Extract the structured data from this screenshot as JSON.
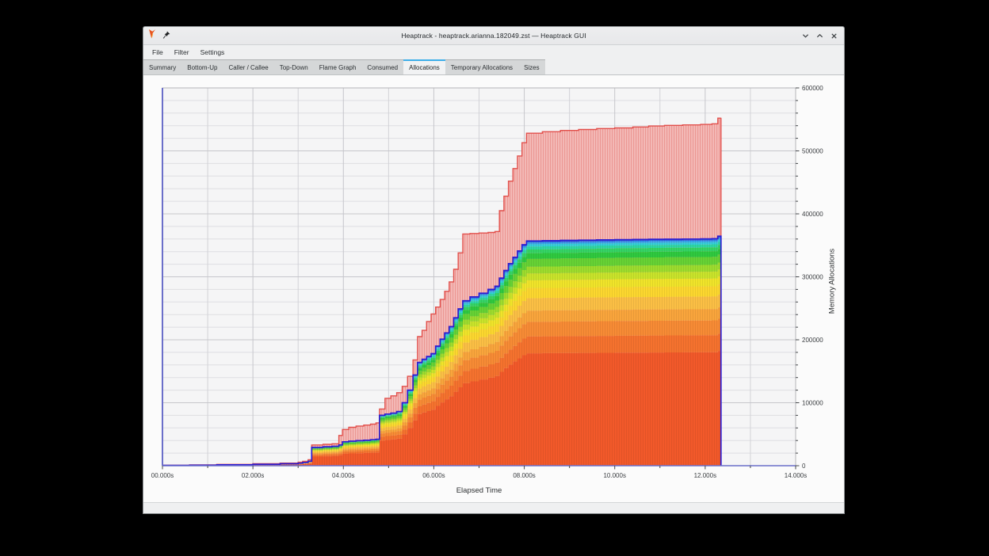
{
  "window": {
    "title": "Heaptrack - heaptrack.arianna.182049.zst — Heaptrack GUI",
    "app_icon": "heaptrack-flame-icon",
    "pin_icon": "pin-icon",
    "controls": [
      "minimize",
      "maximize",
      "close"
    ]
  },
  "menubar": {
    "items": [
      {
        "label": "File"
      },
      {
        "label": "Filter"
      },
      {
        "label": "Settings"
      }
    ]
  },
  "tabs": {
    "items": [
      {
        "label": "Summary",
        "active": false
      },
      {
        "label": "Bottom-Up",
        "active": false
      },
      {
        "label": "Caller / Callee",
        "active": false
      },
      {
        "label": "Top-Down",
        "active": false
      },
      {
        "label": "Flame Graph",
        "active": false
      },
      {
        "label": "Consumed",
        "active": false
      },
      {
        "label": "Allocations",
        "active": true
      },
      {
        "label": "Temporary Allocations",
        "active": false
      },
      {
        "label": "Sizes",
        "active": false
      }
    ]
  },
  "chart_data": {
    "type": "area",
    "title": "",
    "xlabel": "Elapsed Time",
    "ylabel": "Memory Allocations",
    "xlim": [
      0,
      14
    ],
    "ylim": [
      0,
      600000
    ],
    "grid": true,
    "legend": "none",
    "x_tick_labels": [
      "00.000s",
      "02.000s",
      "04.000s",
      "06.000s",
      "08.000s",
      "10.000s",
      "12.000s",
      "14.000s"
    ],
    "x_tick_values": [
      0,
      2,
      4,
      6,
      8,
      10,
      12,
      14
    ],
    "x_minor_step": 1,
    "y_tick_values": [
      0,
      100000,
      200000,
      300000,
      400000,
      500000,
      600000
    ],
    "y_minor_step": 20000,
    "axis_color": "#6b6fc9",
    "x": [
      0,
      0.6,
      1.2,
      2.0,
      2.6,
      3.0,
      3.1,
      3.22,
      3.3,
      3.55,
      3.75,
      3.9,
      3.98,
      4.12,
      4.28,
      4.45,
      4.6,
      4.72,
      4.8,
      4.92,
      5.05,
      5.18,
      5.3,
      5.42,
      5.54,
      5.64,
      5.74,
      5.84,
      5.94,
      6.04,
      6.14,
      6.24,
      6.34,
      6.44,
      6.54,
      6.64,
      6.8,
      7.0,
      7.2,
      7.35,
      7.45,
      7.55,
      7.65,
      7.75,
      7.85,
      7.95,
      8.05,
      8.4,
      8.8,
      9.2,
      9.6,
      10.0,
      10.4,
      10.75,
      11.1,
      11.5,
      11.9,
      12.15,
      12.28,
      12.35
    ],
    "series": [
      {
        "name": "total-allocations",
        "style": "area",
        "line_color": "#e2504c",
        "fill_color": "#f4bcb9",
        "hatch_color": "#e2716d",
        "values": [
          800,
          1400,
          2200,
          3200,
          4200,
          5500,
          7000,
          9500,
          33000,
          34000,
          34800,
          48000,
          57500,
          61000,
          63000,
          64500,
          66000,
          68000,
          90000,
          107000,
          111000,
          116000,
          126000,
          142000,
          168000,
          205000,
          215000,
          229000,
          241000,
          252000,
          264000,
          277000,
          292000,
          312000,
          338000,
          368000,
          368800,
          369500,
          370500,
          372000,
          405000,
          428000,
          452000,
          472000,
          492000,
          513000,
          528000,
          530500,
          532500,
          534000,
          535500,
          536500,
          538000,
          539500,
          540500,
          541200,
          542000,
          543000,
          552000,
          552500
        ]
      },
      {
        "name": "top-allocators-stacked",
        "style": "stacked-area",
        "top_line_color": "#2b1dd2",
        "values": [
          500,
          900,
          1500,
          2300,
          3100,
          4000,
          5200,
          7000,
          29000,
          30000,
          30800,
          33000,
          38000,
          39000,
          39800,
          40400,
          41200,
          42000,
          80000,
          82000,
          83500,
          86000,
          100000,
          120000,
          144000,
          164000,
          169000,
          173500,
          178000,
          190000,
          201000,
          211000,
          221000,
          235000,
          249000,
          262000,
          268000,
          274000,
          280000,
          285000,
          298000,
          310000,
          321000,
          331000,
          341000,
          351000,
          357000,
          357400,
          357800,
          358200,
          358600,
          359000,
          359300,
          359600,
          359800,
          360000,
          360300,
          360600,
          364500,
          364500
        ],
        "bands": [
          {
            "color": "#f2592a",
            "cum_fraction": 0.5
          },
          {
            "color": "#f5722e",
            "cum_fraction": 0.575
          },
          {
            "color": "#f78b35",
            "cum_fraction": 0.64
          },
          {
            "color": "#f9a53c",
            "cum_fraction": 0.69
          },
          {
            "color": "#fbbf45",
            "cum_fraction": 0.745
          },
          {
            "color": "#fcd72f",
            "cum_fraction": 0.79
          },
          {
            "color": "#f0e42a",
            "cum_fraction": 0.825
          },
          {
            "color": "#c9e32b",
            "cum_fraction": 0.855
          },
          {
            "color": "#9ddc2e",
            "cum_fraction": 0.885
          },
          {
            "color": "#66d235",
            "cum_fraction": 0.92
          },
          {
            "color": "#2fc93f",
            "cum_fraction": 0.945
          },
          {
            "color": "#35d465",
            "cum_fraction": 0.962
          },
          {
            "color": "#2ed7a4",
            "cum_fraction": 0.975
          },
          {
            "color": "#35cfd9",
            "cum_fraction": 0.985
          },
          {
            "color": "#38a7ea",
            "cum_fraction": 0.9925
          },
          {
            "color": "#2e66e3",
            "cum_fraction": 0.997
          },
          {
            "color": "#3d33d6",
            "cum_fraction": 1.0
          }
        ]
      }
    ]
  }
}
